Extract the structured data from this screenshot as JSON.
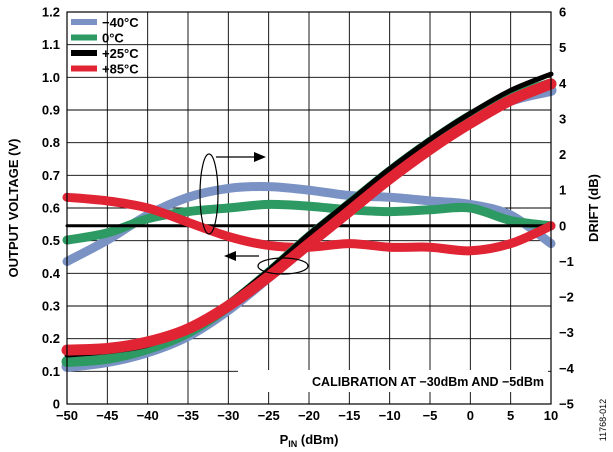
{
  "chart_data": {
    "type": "line",
    "xlabel_main": "P",
    "xlabel_sub": "IN",
    "xlabel_unit": " (dBm)",
    "ylabel_left": "OUTPUT VOLTAGE (V)",
    "ylabel_right": "DRIFT (dB)",
    "xlim": [
      -50,
      10
    ],
    "ylim_left": [
      0,
      1.2
    ],
    "ylim_right": [
      -5,
      6
    ],
    "x_ticks": [
      "−50",
      "−45",
      "−40",
      "−35",
      "−30",
      "−25",
      "−20",
      "−15",
      "−10",
      "−5",
      "0",
      "5",
      "10"
    ],
    "y_left_ticks": [
      "0",
      "0.1",
      "0.2",
      "0.3",
      "0.4",
      "0.5",
      "0.6",
      "0.7",
      "0.8",
      "0.9",
      "1.0",
      "1.1",
      "1.2"
    ],
    "y_right_ticks": [
      "−5",
      "−4",
      "−3",
      "−2",
      "−1",
      "0",
      "1",
      "2",
      "3",
      "4",
      "5",
      "6"
    ],
    "grid": true,
    "legend_position": "top-left",
    "annotation": "CALIBRATION AT −30dBm AND −5dBm",
    "figure_id": "11768-012",
    "colors": {
      "-40": "#7b93c4",
      "0": "#2e9a63",
      "25": "#000000",
      "85": "#e02433"
    },
    "series": [
      {
        "name": "−40°C",
        "key": "-40"
      },
      {
        "name": "0°C",
        "key": "0"
      },
      {
        "name": "+25°C",
        "key": "25"
      },
      {
        "name": "+85°C",
        "key": "85"
      }
    ],
    "x": [
      -50,
      -45,
      -40,
      -35,
      -30,
      -25,
      -20,
      -15,
      -10,
      -5,
      0,
      5,
      10
    ],
    "voltage": {
      "-40": [
        0.115,
        0.13,
        0.16,
        0.21,
        0.29,
        0.39,
        0.5,
        0.6,
        0.7,
        0.79,
        0.87,
        0.93,
        0.96
      ],
      "0": [
        0.13,
        0.14,
        0.17,
        0.22,
        0.3,
        0.4,
        0.51,
        0.61,
        0.71,
        0.8,
        0.88,
        0.94,
        0.98
      ],
      "25": [
        0.15,
        0.16,
        0.18,
        0.23,
        0.31,
        0.41,
        0.52,
        0.62,
        0.72,
        0.81,
        0.89,
        0.96,
        1.01
      ],
      "85": [
        0.165,
        0.17,
        0.19,
        0.23,
        0.3,
        0.39,
        0.49,
        0.59,
        0.69,
        0.78,
        0.86,
        0.93,
        0.98
      ]
    },
    "drift": {
      "-40": [
        -1.0,
        -0.4,
        0.3,
        0.8,
        1.05,
        1.1,
        1.0,
        0.85,
        0.8,
        0.7,
        0.6,
        0.3,
        -0.5
      ],
      "0": [
        -0.4,
        -0.2,
        0.2,
        0.4,
        0.5,
        0.6,
        0.55,
        0.45,
        0.4,
        0.45,
        0.5,
        0.15,
        0.0
      ],
      "25": [
        0,
        0,
        0,
        0,
        0,
        0,
        0,
        0,
        0,
        0,
        0,
        0,
        0
      ],
      "85": [
        0.8,
        0.7,
        0.5,
        0.1,
        -0.3,
        -0.55,
        -0.6,
        -0.5,
        -0.6,
        -0.6,
        -0.7,
        -0.5,
        0.0
      ]
    }
  }
}
